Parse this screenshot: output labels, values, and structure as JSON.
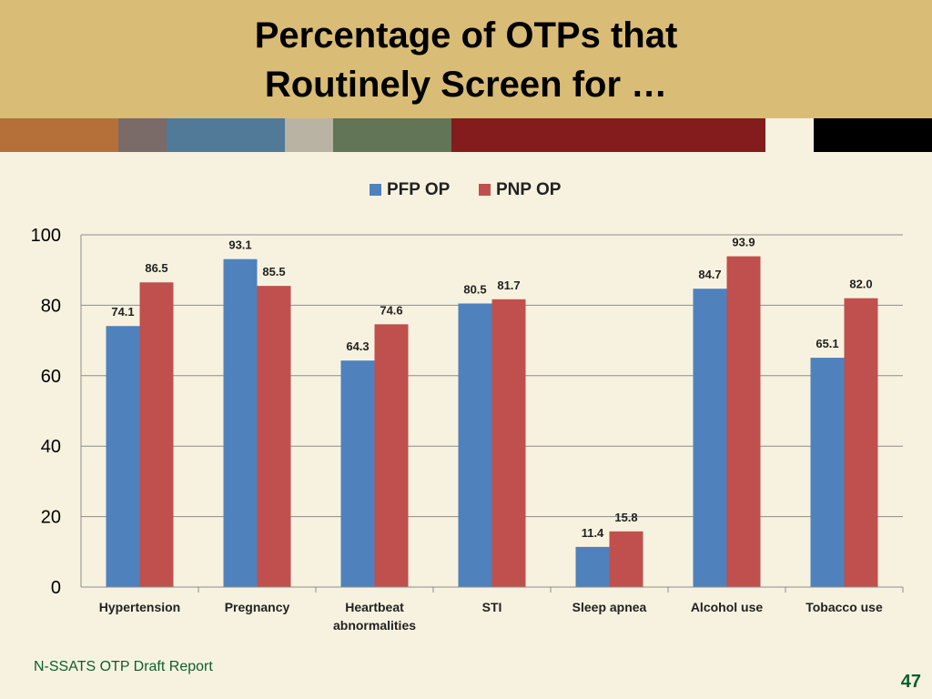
{
  "slide": {
    "title_line1": "Percentage of OTPs that",
    "title_line2": "Routinely Screen for …",
    "footer": "N-SSATS OTP Draft Report",
    "page_number": "47"
  },
  "colors": {
    "header_bg": "#d9bd76",
    "page_bg": "#f7f2df",
    "strip": [
      "#b5703a",
      "#7a6a68",
      "#507a98",
      "#b9b3a3",
      "#627556",
      "#841b1d",
      "#f7f2df",
      "#000000"
    ],
    "series_pfp": "#4f81bd",
    "series_pnp": "#c0504d",
    "footer_text": "#0b5e2f"
  },
  "chart_data": {
    "type": "bar",
    "categories": [
      "Hypertension",
      "Pregnancy",
      "Heartbeat abnormalities",
      "STI",
      "Sleep apnea",
      "Alcohol use",
      "Tobacco use"
    ],
    "category_lines": [
      [
        "Hypertension"
      ],
      [
        "Pregnancy"
      ],
      [
        "Heartbeat",
        "abnormalities"
      ],
      [
        "STI"
      ],
      [
        "Sleep apnea"
      ],
      [
        "Alcohol use"
      ],
      [
        "Tobacco use"
      ]
    ],
    "series": [
      {
        "name": "PFP OP",
        "values": [
          74.1,
          93.1,
          64.3,
          80.5,
          11.4,
          84.7,
          65.1
        ],
        "labels": [
          "74.1",
          "93.1",
          "64.3",
          "80.5",
          "11.4",
          "84.7",
          "65.1"
        ]
      },
      {
        "name": "PNP OP",
        "values": [
          86.5,
          85.5,
          74.6,
          81.7,
          15.8,
          93.9,
          82.0
        ],
        "labels": [
          "86.5",
          "85.5",
          "74.6",
          "81.7",
          "15.8",
          "93.9",
          "82.0"
        ]
      }
    ],
    "ylim": [
      0,
      100
    ],
    "yticks": [
      0,
      20,
      40,
      60,
      80,
      100
    ],
    "grid": true,
    "legend_position": "top-center"
  }
}
